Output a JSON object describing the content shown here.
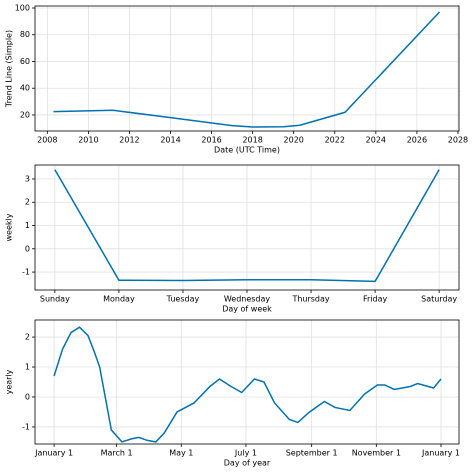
{
  "chart_data": [
    {
      "type": "line",
      "ylabel": "Trend Line (Simple)",
      "xlabel": "Date (UTC Time)",
      "color": "#0072B2",
      "grid": true,
      "x": [
        2008.3,
        2011.2,
        2014,
        2017,
        2018,
        2019.5,
        2020.3,
        2022.5,
        2027.1
      ],
      "values": [
        22.5,
        23.5,
        18,
        12,
        11,
        11.2,
        12.3,
        22,
        97
      ],
      "xlim": [
        2007.4,
        2028.05
      ],
      "xticks": [
        2008,
        2010,
        2012,
        2014,
        2016,
        2018,
        2020,
        2022,
        2024,
        2026,
        2028
      ],
      "ylim": [
        8,
        101.5
      ],
      "yticks": [
        20,
        40,
        60,
        80,
        100
      ]
    },
    {
      "type": "line",
      "ylabel": "weekly",
      "xlabel": "Day of week",
      "color": "#0072B2",
      "grid": true,
      "categories": [
        "Sunday",
        "Monday",
        "Tuesday",
        "Wednesday",
        "Thursday",
        "Friday",
        "Saturday"
      ],
      "values": [
        3.4,
        -1.35,
        -1.36,
        -1.33,
        -1.33,
        -1.4,
        3.4
      ],
      "ylim": [
        -1.77,
        3.6
      ],
      "yticks": [
        -1,
        0,
        1,
        2,
        3
      ]
    },
    {
      "type": "line",
      "ylabel": "yearly",
      "xlabel": "Day of year",
      "color": "#0072B2",
      "grid": true,
      "x": [
        0,
        8,
        16,
        24,
        32,
        38,
        43,
        54,
        64,
        73,
        80,
        88,
        96,
        104,
        116,
        132,
        147,
        156,
        167,
        177,
        189,
        198,
        208,
        222,
        230,
        241,
        255,
        265,
        279,
        293,
        305,
        312,
        321,
        336,
        343,
        353,
        358,
        365
      ],
      "values": [
        0.7,
        1.6,
        2.15,
        2.33,
        2.05,
        1.5,
        1.0,
        -1.1,
        -1.5,
        -1.4,
        -1.35,
        -1.45,
        -1.5,
        -1.2,
        -0.5,
        -0.2,
        0.35,
        0.6,
        0.35,
        0.15,
        0.6,
        0.5,
        -0.2,
        -0.75,
        -0.85,
        -0.5,
        -0.15,
        -0.35,
        -0.45,
        0.1,
        0.4,
        0.4,
        0.25,
        0.35,
        0.45,
        0.35,
        0.3,
        0.6
      ],
      "xlim": [
        -18,
        382
      ],
      "xticks": [
        {
          "value": 0,
          "label": "January 1"
        },
        {
          "value": 59,
          "label": "March 1"
        },
        {
          "value": 120,
          "label": "May 1"
        },
        {
          "value": 181,
          "label": "July 1"
        },
        {
          "value": 243,
          "label": "September 1"
        },
        {
          "value": 304,
          "label": "November 1"
        },
        {
          "value": 365,
          "label": "January 1"
        }
      ],
      "ylim": [
        -1.57,
        2.57
      ],
      "yticks": [
        -1,
        0,
        1,
        2
      ]
    }
  ]
}
